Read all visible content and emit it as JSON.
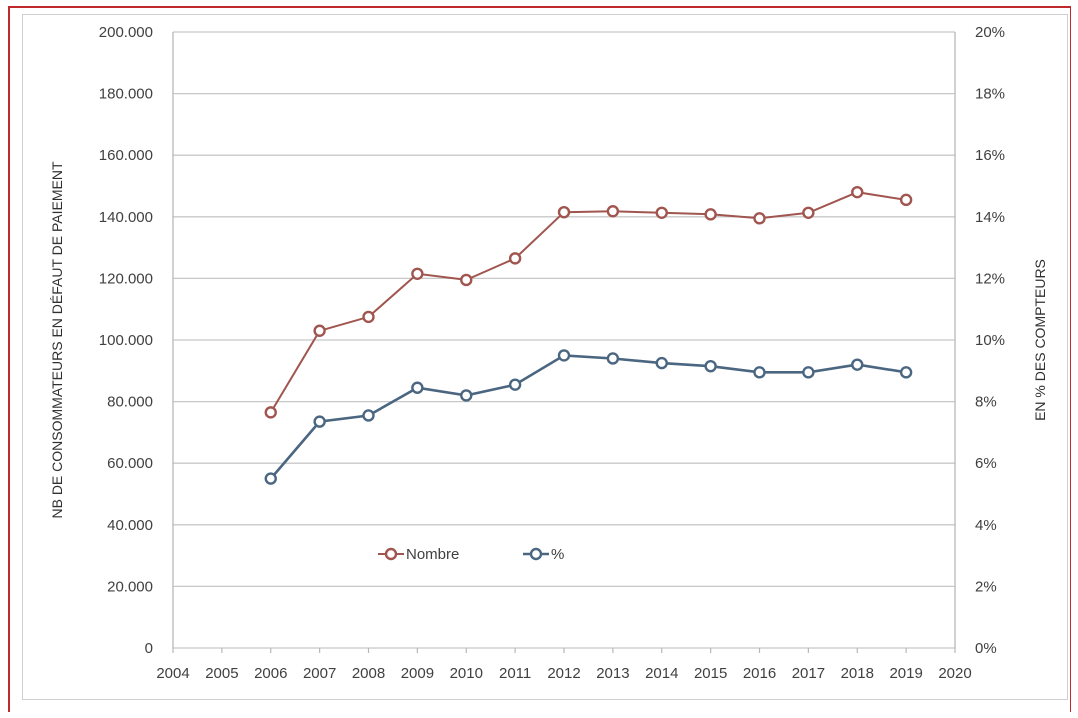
{
  "chart_data": {
    "type": "line",
    "x": [
      2006,
      2007,
      2008,
      2009,
      2010,
      2011,
      2012,
      2013,
      2014,
      2015,
      2016,
      2017,
      2018,
      2019
    ],
    "x_ticks": [
      "2004",
      "2005",
      "2006",
      "2007",
      "2008",
      "2009",
      "2010",
      "2011",
      "2012",
      "2013",
      "2014",
      "2015",
      "2016",
      "2017",
      "2018",
      "2019",
      "2020"
    ],
    "xlim": [
      2004,
      2020
    ],
    "ylabel": "NB DE CONSOMMATEURS EN DÉFAUT DE PAIEMENT",
    "ylim": [
      0,
      200000
    ],
    "y_ticks": [
      "0",
      "20.000",
      "40.000",
      "60.000",
      "80.000",
      "100.000",
      "120.000",
      "140.000",
      "160.000",
      "180.000",
      "200.000"
    ],
    "y2label": "EN % DES COMPTEURS",
    "y2lim": [
      0,
      20
    ],
    "y2_ticks": [
      "0%",
      "2%",
      "4%",
      "6%",
      "8%",
      "10%",
      "12%",
      "14%",
      "16%",
      "18%",
      "20%"
    ],
    "grid": "horizontal",
    "legend_position": "lower-center",
    "series": [
      {
        "name": "Nombre",
        "axis": "left",
        "color": "#a0554f",
        "values": [
          76500,
          103000,
          107500,
          121500,
          119500,
          126500,
          141500,
          141800,
          141300,
          140800,
          139500,
          141300,
          148000,
          145500
        ]
      },
      {
        "name": "%",
        "axis": "right",
        "color": "#4a6680",
        "values": [
          5.5,
          7.35,
          7.55,
          8.45,
          8.2,
          8.55,
          9.5,
          9.4,
          9.25,
          9.15,
          8.95,
          8.95,
          9.2,
          8.95
        ]
      }
    ]
  }
}
